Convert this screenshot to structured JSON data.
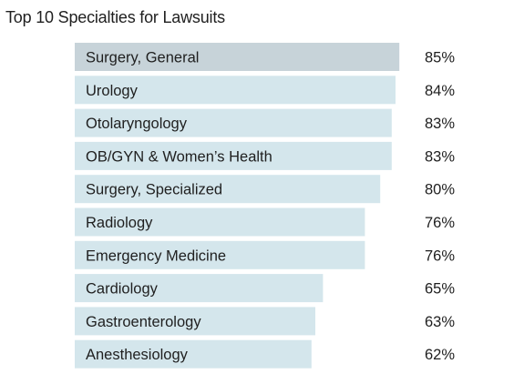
{
  "chart_data": {
    "type": "bar",
    "orientation": "horizontal",
    "title": "Top 10 Specialties for Lawsuits",
    "categories": [
      "Surgery, General",
      "Urology",
      "Otolaryngology",
      "OB/GYN & Women’s Health",
      "Surgery, Specialized",
      "Radiology",
      "Emergency Medicine",
      "Cardiology",
      "Gastroenterology",
      "Anesthesiology"
    ],
    "values": [
      85,
      84,
      83,
      83,
      80,
      76,
      76,
      65,
      63,
      62
    ],
    "value_labels": [
      "85%",
      "84%",
      "83%",
      "83%",
      "80%",
      "76%",
      "76%",
      "65%",
      "63%",
      "62%"
    ],
    "xlabel": "",
    "ylabel": "",
    "grid": false,
    "legend": "none",
    "colors": {
      "highlight_bar": "#c7d3d9",
      "bar": "#d4e6ec",
      "text": "#1f1f1f"
    }
  }
}
